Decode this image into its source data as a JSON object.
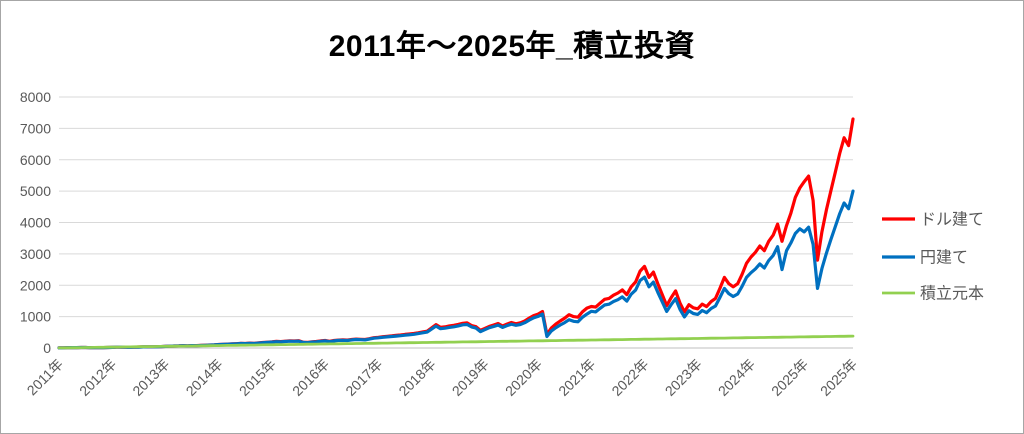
{
  "title": "2011年～2025年_積立投資",
  "legend": {
    "position": "right",
    "items": [
      {
        "label": "ドル建て",
        "color": "#FF0000"
      },
      {
        "label": "円建て",
        "color": "#0070C0"
      },
      {
        "label": "積立元本",
        "color": "#92D050"
      }
    ]
  },
  "axis_colors": {
    "gridline": "#D9D9D9",
    "axis_line": "#BFBFBF",
    "tick_text": "#595959",
    "legend_text": "#595959"
  },
  "chart_data": {
    "type": "line",
    "title": "2011年～2025年_積立投資",
    "x_unit": "month",
    "x_start": "2011-01",
    "x_points": 180,
    "x_tick_labels": [
      "2011年",
      "2012年",
      "2013年",
      "2014年",
      "2015年",
      "2016年",
      "2017年",
      "2018年",
      "2019年",
      "2020年",
      "2021年",
      "2022年",
      "2023年",
      "2024年",
      "2025年",
      "2025年"
    ],
    "x_tick_indices": [
      0,
      12,
      24,
      36,
      48,
      60,
      72,
      84,
      96,
      108,
      120,
      132,
      144,
      156,
      168,
      179
    ],
    "ylim": [
      0,
      8000
    ],
    "y_ticks": [
      0,
      1000,
      2000,
      3000,
      4000,
      5000,
      6000,
      7000,
      8000
    ],
    "grid": "horizontal",
    "legend_position": "right",
    "series": [
      {
        "name": "ドル建て",
        "color": "#FF0000",
        "width": 3.2,
        "values": [
          2,
          5,
          9,
          12,
          14,
          15,
          16,
          10,
          8,
          13,
          14,
          15,
          20,
          25,
          29,
          28,
          24,
          27,
          31,
          35,
          39,
          38,
          40,
          46,
          52,
          58,
          64,
          68,
          74,
          70,
          78,
          75,
          82,
          88,
          95,
          102,
          110,
          118,
          124,
          130,
          138,
          148,
          144,
          156,
          150,
          162,
          175,
          185,
          195,
          210,
          205,
          218,
          228,
          222,
          232,
          186,
          178,
          198,
          208,
          225,
          240,
          212,
          238,
          252,
          258,
          252,
          272,
          284,
          278,
          272,
          298,
          328,
          342,
          360,
          372,
          385,
          400,
          415,
          432,
          446,
          462,
          486,
          512,
          535,
          640,
          745,
          655,
          672,
          700,
          722,
          752,
          788,
          800,
          718,
          678,
          560,
          622,
          690,
          732,
          780,
          702,
          762,
          812,
          772,
          802,
          862,
          952,
          1032,
          1082,
          1162,
          430,
          642,
          762,
          862,
          952,
          1062,
          1002,
          982,
          1152,
          1272,
          1322,
          1302,
          1432,
          1552,
          1582,
          1682,
          1752,
          1852,
          1702,
          1952,
          2102,
          2450,
          2600,
          2250,
          2420,
          2050,
          1700,
          1350,
          1600,
          1820,
          1430,
          1150,
          1380,
          1280,
          1250,
          1400,
          1320,
          1480,
          1580,
          1900,
          2250,
          2050,
          1950,
          2050,
          2350,
          2700,
          2900,
          3050,
          3250,
          3100,
          3400,
          3600,
          3950,
          3400,
          3900,
          4300,
          4800,
          5100,
          5300,
          5480,
          4700,
          2800,
          3700,
          4400,
          5000,
          5600,
          6200,
          6700,
          6450,
          7300
        ]
      },
      {
        "name": "円建て",
        "color": "#0070C0",
        "width": 3.2,
        "values": [
          2,
          5,
          9,
          12,
          14,
          15,
          16,
          10,
          8,
          13,
          14,
          15,
          19,
          24,
          28,
          27,
          23,
          26,
          30,
          34,
          38,
          37,
          39,
          45,
          51,
          57,
          63,
          67,
          73,
          69,
          77,
          74,
          81,
          87,
          93,
          100,
          107,
          114,
          120,
          126,
          133,
          143,
          139,
          150,
          144,
          156,
          168,
          178,
          187,
          201,
          196,
          208,
          218,
          212,
          221,
          177,
          170,
          189,
          198,
          214,
          229,
          202,
          227,
          241,
          246,
          240,
          259,
          271,
          265,
          259,
          284,
          312,
          325,
          342,
          353,
          365,
          379,
          393,
          409,
          422,
          437,
          460,
          484,
          506,
          602,
          699,
          614,
          630,
          656,
          677,
          704,
          738,
          749,
          672,
          634,
          523,
          583,
          646,
          685,
          730,
          657,
          713,
          760,
          722,
          750,
          806,
          890,
          964,
          1008,
          1081,
          366,
          546,
          648,
          733,
          809,
          902,
          851,
          834,
          978,
          1080,
          1170,
          1150,
          1265,
          1370,
          1395,
          1482,
          1540,
          1628,
          1495,
          1715,
          1845,
          2150,
          2260,
          1950,
          2100,
          1775,
          1470,
          1165,
          1380,
          1570,
          1230,
          990,
          1185,
          1100,
          1070,
          1195,
          1125,
          1260,
          1340,
          1610,
          1900,
          1730,
          1640,
          1720,
          1965,
          2250,
          2400,
          2520,
          2680,
          2550,
          2790,
          2950,
          3230,
          2500,
          3100,
          3350,
          3650,
          3800,
          3700,
          3850,
          3300,
          1900,
          2530,
          3020,
          3450,
          3870,
          4280,
          4620,
          4440,
          5000
        ]
      },
      {
        "name": "積立元本",
        "color": "#92D050",
        "width": 2.8,
        "values": [
          2,
          4,
          6,
          8,
          10,
          13,
          15,
          17,
          19,
          21,
          23,
          25,
          27,
          29,
          31,
          34,
          36,
          38,
          40,
          42,
          44,
          46,
          48,
          50,
          52,
          55,
          57,
          59,
          61,
          63,
          65,
          67,
          69,
          71,
          73,
          76,
          78,
          80,
          82,
          84,
          86,
          88,
          90,
          92,
          94,
          97,
          99,
          101,
          103,
          105,
          107,
          109,
          111,
          113,
          115,
          118,
          120,
          122,
          124,
          126,
          128,
          130,
          132,
          134,
          136,
          139,
          141,
          143,
          145,
          147,
          149,
          151,
          153,
          155,
          157,
          160,
          162,
          164,
          166,
          168,
          170,
          172,
          174,
          176,
          178,
          181,
          183,
          185,
          187,
          189,
          191,
          193,
          195,
          197,
          199,
          202,
          204,
          206,
          208,
          210,
          212,
          214,
          216,
          218,
          220,
          223,
          225,
          227,
          229,
          231,
          233,
          235,
          237,
          239,
          241,
          244,
          246,
          248,
          250,
          252,
          254,
          256,
          258,
          260,
          262,
          265,
          267,
          269,
          271,
          273,
          275,
          277,
          279,
          281,
          283,
          286,
          288,
          290,
          292,
          294,
          296,
          298,
          300,
          302,
          304,
          307,
          309,
          311,
          313,
          315,
          317,
          319,
          321,
          323,
          325,
          328,
          330,
          332,
          334,
          336,
          338,
          340,
          342,
          344,
          346,
          349,
          351,
          353,
          355,
          357,
          359,
          361,
          363,
          365,
          368,
          370,
          372,
          374,
          376,
          378
        ]
      }
    ]
  }
}
